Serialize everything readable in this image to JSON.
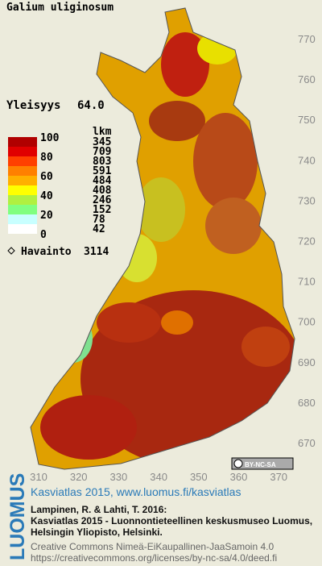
{
  "title": "Galium uliginosum",
  "frequency": {
    "label": "Yleisyys",
    "value": "64.0"
  },
  "legend": {
    "scale_labels": [
      100,
      80,
      60,
      40,
      20,
      0
    ],
    "count_header": "lkm",
    "counts": [
      345,
      709,
      803,
      591,
      484,
      408,
      246,
      152,
      78,
      42
    ],
    "colors": [
      "#b00000",
      "#e00000",
      "#ff4000",
      "#ff8000",
      "#ffb000",
      "#ffff00",
      "#b0f040",
      "#80ff80",
      "#c8ffff",
      "#ffffff"
    ]
  },
  "observations": {
    "label": "Havainto",
    "value": 3114
  },
  "axes": {
    "y_labels": [
      770,
      760,
      750,
      740,
      730,
      720,
      710,
      700,
      690,
      680,
      670
    ],
    "x_labels": [
      310,
      320,
      330,
      340,
      350,
      360,
      370
    ]
  },
  "license_badge": "BY-NC-SA",
  "footer": {
    "logo": "LUOMUS",
    "link": "Kasviatlas 2015, www.luomus.fi/kasviatlas",
    "citation": [
      "Lampinen, R. & Lahti, T. 2016:",
      "Kasviatlas 2015 - Luonnontieteellinen keskusmuseo Luomus,",
      "Helsingin Yliopisto, Helsinki."
    ],
    "license": [
      "Creative Commons Nimeä-EiKaupallinen-JaaSamoin 4.0",
      "https://creativecommons.org/licenses/by-nc-sa/4.0/deed.fi"
    ]
  }
}
